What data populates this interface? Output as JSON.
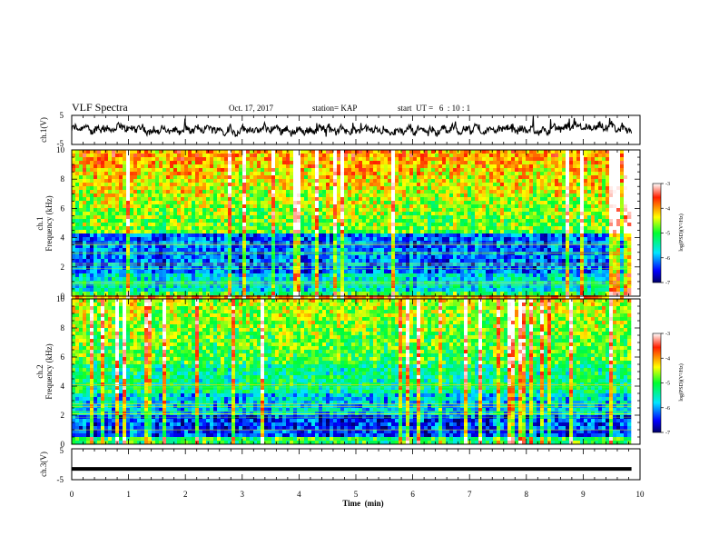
{
  "header": {
    "title": "VLF Spectra",
    "date": "Oct. 17, 2017",
    "station": "station= KAP",
    "start": "start  UT =   6  : 10 : 1"
  },
  "chart_data": [
    {
      "type": "line",
      "name": "ch1-waveform",
      "ylabel": "ch.1(V)",
      "ylim": [
        -5,
        5
      ],
      "yticks": [
        "5",
        "-5"
      ],
      "xlim": [
        0,
        10
      ],
      "color": "#000000"
    },
    {
      "type": "heatmap",
      "name": "ch1-spectrogram",
      "ylabel": "ch.1\nFrequency  (kHz)",
      "ylabel_top": "ch.1",
      "ylabel_bottom": "Frequency  (kHz)",
      "ylim": [
        0,
        10
      ],
      "yticks": [
        "0",
        "2",
        "4",
        "6",
        "8",
        "10"
      ],
      "xlim": [
        0,
        9.85
      ],
      "colorbar": {
        "label": "log(PSD)(V²/Hz)",
        "range": [
          -7,
          -3
        ],
        "ticks": [
          "-3",
          "-4",
          "-5",
          "-6",
          "-7"
        ]
      }
    },
    {
      "type": "heatmap",
      "name": "ch2-spectrogram",
      "ylabel_top": "ch.2",
      "ylabel_bottom": "Frequency  (kHz)",
      "ylim": [
        0,
        10
      ],
      "yticks": [
        "0",
        "2",
        "4",
        "6",
        "8",
        "10"
      ],
      "xlim": [
        0,
        9.85
      ],
      "colorbar": {
        "label": "log(PSD)(V²/Hz)",
        "range": [
          -7,
          -3
        ],
        "ticks": [
          "-3",
          "-4",
          "-5",
          "-6",
          "-7"
        ]
      }
    },
    {
      "type": "line",
      "name": "ch3-waveform",
      "ylabel": "ch.3(V)",
      "ylim": [
        -5,
        5
      ],
      "yticks": [
        "5",
        "-5"
      ],
      "values": [
        {
          "x": 0,
          "y": -1.5
        },
        {
          "x": 9.85,
          "y": -1.5
        }
      ],
      "xlim": [
        0,
        10
      ],
      "xlabel": "Time  (min)",
      "xticks": [
        "0",
        "1",
        "2",
        "3",
        "4",
        "5",
        "6",
        "7",
        "8",
        "9",
        "10"
      ]
    }
  ]
}
